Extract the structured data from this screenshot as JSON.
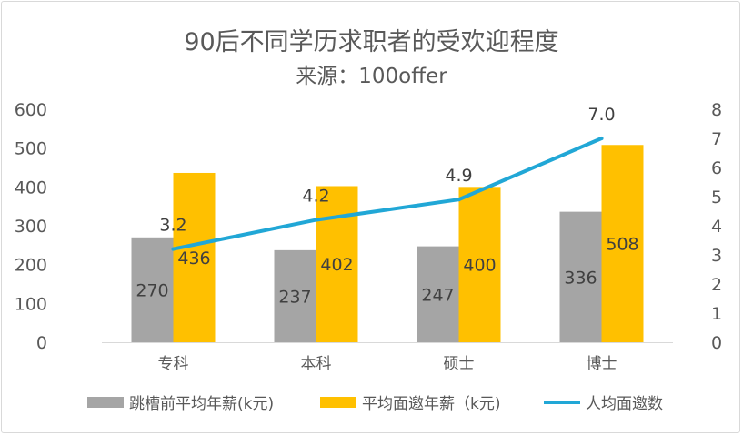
{
  "chart_data": {
    "type": "bar",
    "title": "90后不同学历求职者的受欢迎程度",
    "subtitle": "来源：100offer",
    "categories": [
      "专科",
      "本科",
      "硕士",
      "博士"
    ],
    "series": [
      {
        "name": "跳槽前平均年薪(k元)",
        "type": "bar",
        "axis": "left",
        "color": "#a5a5a5",
        "values": [
          270,
          237,
          247,
          336
        ]
      },
      {
        "name": "平均面邀年薪（k元)",
        "type": "bar",
        "axis": "left",
        "color": "#ffc000",
        "values": [
          436,
          402,
          400,
          508
        ]
      },
      {
        "name": "人均面邀数",
        "type": "line",
        "axis": "right",
        "color": "#21a7d6",
        "values": [
          3.2,
          4.2,
          4.9,
          7.0
        ]
      }
    ],
    "y_left": {
      "min": 0,
      "max": 600,
      "step": 100,
      "ticks": [
        "0",
        "100",
        "200",
        "300",
        "400",
        "500",
        "600"
      ]
    },
    "y_right": {
      "min": 0,
      "max": 8,
      "step": 1,
      "ticks": [
        "0",
        "1",
        "2",
        "3",
        "4",
        "5",
        "6",
        "7",
        "8"
      ]
    },
    "line_labels": [
      "3.2",
      "4.2",
      "4.9",
      "7.0"
    ],
    "grid": false,
    "legend_position": "bottom"
  }
}
